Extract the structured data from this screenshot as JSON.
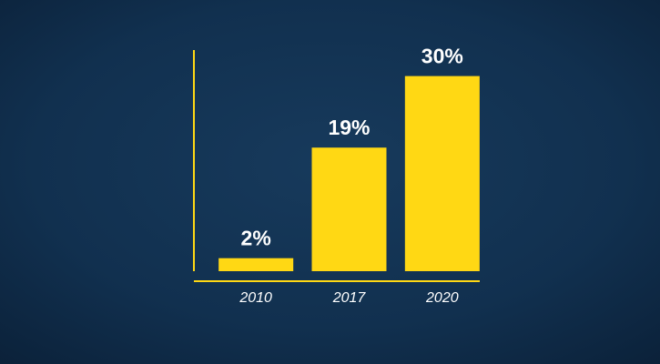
{
  "chart_data": {
    "type": "bar",
    "categories": [
      "2010",
      "2017",
      "2020"
    ],
    "values": [
      2,
      19,
      30
    ],
    "value_labels": [
      "2%",
      "19%",
      "30%"
    ],
    "color": "#ffd814",
    "ylim": [
      0,
      34
    ]
  }
}
